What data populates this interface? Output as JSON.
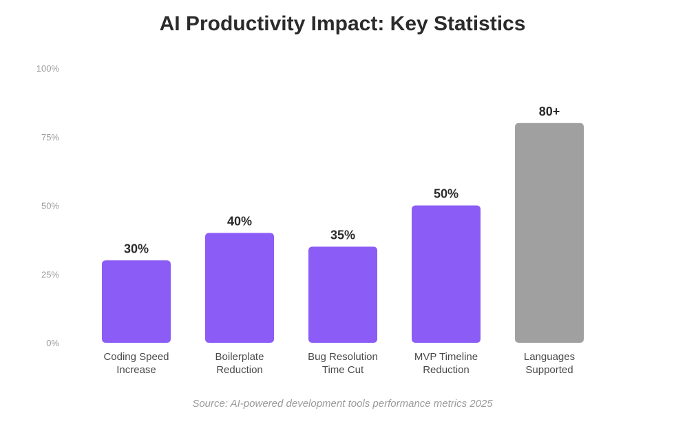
{
  "chart_data": {
    "type": "bar",
    "title": "AI Productivity Impact: Key Statistics",
    "xlabel": "",
    "ylabel": "",
    "ylim": [
      0,
      100
    ],
    "y_ticks": [
      "0%",
      "25%",
      "50%",
      "75%",
      "100%"
    ],
    "y_tick_values": [
      0,
      25,
      50,
      75,
      100
    ],
    "grid": false,
    "categories": [
      [
        "Coding Speed",
        "Increase"
      ],
      [
        "Boilerplate",
        "Reduction"
      ],
      [
        "Bug Resolution",
        "Time Cut"
      ],
      [
        "MVP Timeline",
        "Reduction"
      ],
      [
        "Languages",
        "Supported"
      ]
    ],
    "values": [
      30,
      40,
      35,
      50,
      80
    ],
    "data_labels": [
      "30%",
      "40%",
      "35%",
      "50%",
      "80+"
    ],
    "colors": [
      "#8b5cf6",
      "#8b5cf6",
      "#8b5cf6",
      "#8b5cf6",
      "#a0a0a0"
    ]
  },
  "source": "Source: AI-powered development tools performance metrics 2025"
}
